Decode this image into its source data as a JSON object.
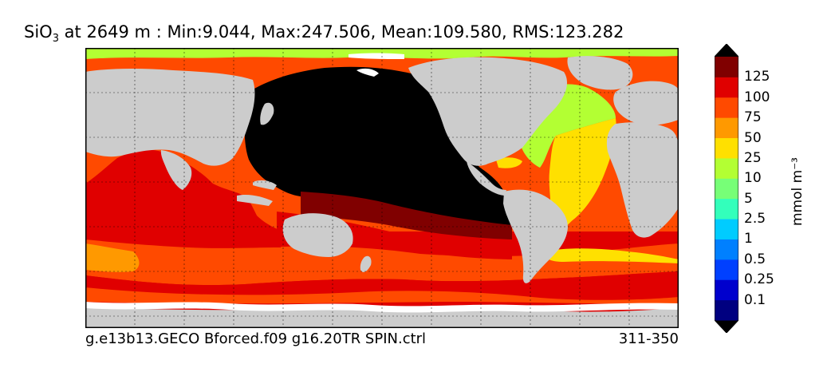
{
  "title": {
    "species_base": "SiO",
    "species_sub": "3",
    "rest": " at 2649 m : Min:9.044, Max:247.506, Mean:109.580, RMS:123.282"
  },
  "footer": {
    "case_name": "g.e13b13.GECO Bforced.f09 g16.20TR SPIN.ctrl",
    "year_range": "311-350"
  },
  "colorbar": {
    "units": "mmol m⁻³",
    "labels": [
      "125",
      "100",
      "75",
      "50",
      "25",
      "10",
      "5",
      "2.5",
      "1",
      "0.5",
      "0.25",
      "0.1"
    ],
    "colors": [
      "#000080",
      "#0000cd",
      "#0040ff",
      "#0080ff",
      "#00ccff",
      "#33ffbb",
      "#77ff77",
      "#b3ff33",
      "#ffe000",
      "#ff9900",
      "#ff4a00",
      "#e00000",
      "#800000"
    ]
  },
  "map_colors": {
    "land": "#cccccc",
    "missing": "#ffffff",
    "lt10": "#b3ff33",
    "c25": "#ffe000",
    "c50": "#ff9900",
    "c75": "#ff4a00",
    "c100": "#e00000",
    "c125": "#800000",
    "gt125": "#000000"
  }
}
